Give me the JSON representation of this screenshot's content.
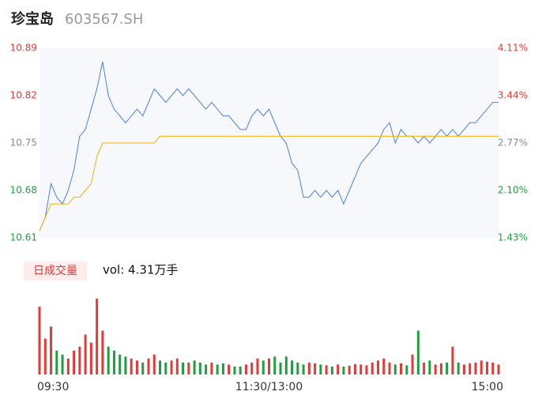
{
  "header": {
    "name": "珍宝岛",
    "code": "603567.SH"
  },
  "chart_data": [
    {
      "type": "line",
      "xlim": [
        0,
        80
      ],
      "ylim": [
        10.61,
        10.89
      ],
      "yticks": [
        10.89,
        10.82,
        10.75,
        10.68,
        10.61
      ],
      "ytick_colors": [
        "#e53935",
        "#e53935",
        "#888888",
        "#1e9e3e",
        "#1e9e3e"
      ],
      "y2lim": [
        1.43,
        4.11
      ],
      "y2ticks": [
        {
          "value": 4.11,
          "label": "4.11%"
        },
        {
          "value": 3.44,
          "label": "3.44%"
        },
        {
          "value": 2.77,
          "label": "2.77%"
        },
        {
          "value": 2.1,
          "label": "2.10%"
        },
        {
          "value": 1.43,
          "label": "1.43%"
        }
      ],
      "grid": false,
      "series": [
        {
          "color": "#4a7fe0",
          "values": [
            10.62,
            10.64,
            10.69,
            10.67,
            10.66,
            10.68,
            10.71,
            10.76,
            10.77,
            10.8,
            10.83,
            10.87,
            10.82,
            10.8,
            10.79,
            10.78,
            10.79,
            10.8,
            10.79,
            10.81,
            10.83,
            10.82,
            10.81,
            10.82,
            10.83,
            10.82,
            10.83,
            10.82,
            10.81,
            10.8,
            10.81,
            10.8,
            10.79,
            10.79,
            10.78,
            10.77,
            10.77,
            10.79,
            10.8,
            10.79,
            10.8,
            10.78,
            10.76,
            10.75,
            10.72,
            10.71,
            10.67,
            10.67,
            10.68,
            10.67,
            10.68,
            10.67,
            10.68,
            10.66,
            10.68,
            10.7,
            10.72,
            10.73,
            10.74,
            10.75,
            10.77,
            10.78,
            10.75,
            10.77,
            10.76,
            10.76,
            10.75,
            10.76,
            10.75,
            10.76,
            10.77,
            10.76,
            10.77,
            10.76,
            10.77,
            10.78,
            10.78,
            10.79,
            10.8,
            10.81,
            10.81
          ]
        },
        {
          "color": "#f0b400",
          "values": [
            10.62,
            10.64,
            10.66,
            10.66,
            10.66,
            10.66,
            10.67,
            10.67,
            10.68,
            10.69,
            10.73,
            10.75,
            10.75,
            10.75,
            10.75,
            10.75,
            10.75,
            10.75,
            10.75,
            10.75,
            10.75,
            10.76,
            10.76,
            10.76,
            10.76,
            10.76,
            10.76,
            10.76,
            10.76,
            10.76,
            10.76,
            10.76,
            10.76,
            10.76,
            10.76,
            10.76,
            10.76,
            10.76,
            10.76,
            10.76,
            10.76,
            10.76,
            10.76,
            10.76,
            10.76,
            10.76,
            10.76,
            10.76,
            10.76,
            10.76,
            10.76,
            10.76,
            10.76,
            10.76,
            10.76,
            10.76,
            10.76,
            10.76,
            10.76,
            10.76,
            10.76,
            10.76,
            10.76,
            10.76,
            10.76,
            10.76,
            10.76,
            10.76,
            10.76,
            10.76,
            10.76,
            10.76,
            10.76,
            10.76,
            10.76,
            10.76,
            10.76,
            10.76,
            10.76,
            10.76,
            10.76
          ]
        }
      ]
    },
    {
      "type": "bar",
      "title": "日成交量",
      "subtitle": "vol: 4.31万手",
      "xlim": [
        0,
        80
      ],
      "ylim": [
        0,
        2000
      ],
      "up_color": "#e53935",
      "down_color": "#1e9e3e",
      "xticks": [
        {
          "value": 0,
          "label": "09:30"
        },
        {
          "value": 40,
          "label": "11:30/13:00"
        },
        {
          "value": 80,
          "label": "15:00"
        }
      ],
      "values": [
        1700,
        900,
        1200,
        600,
        500,
        400,
        600,
        700,
        1000,
        800,
        1900,
        1100,
        700,
        600,
        500,
        450,
        400,
        350,
        300,
        400,
        500,
        350,
        300,
        350,
        400,
        300,
        300,
        350,
        300,
        250,
        300,
        250,
        280,
        250,
        200,
        200,
        250,
        300,
        400,
        350,
        400,
        450,
        300,
        450,
        350,
        300,
        250,
        300,
        280,
        250,
        230,
        200,
        250,
        200,
        220,
        260,
        250,
        230,
        300,
        350,
        400,
        300,
        250,
        280,
        230,
        500,
        1100,
        300,
        350,
        250,
        280,
        300,
        700,
        300,
        250,
        280,
        300,
        350,
        320,
        300,
        250
      ]
    }
  ]
}
